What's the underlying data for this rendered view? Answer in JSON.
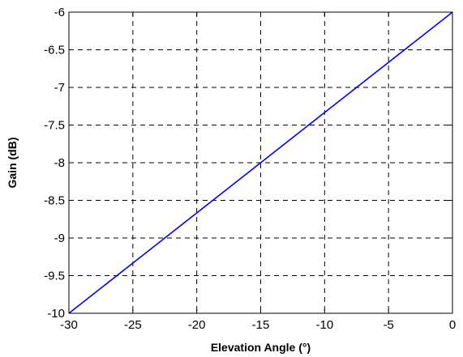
{
  "chart_data": {
    "type": "line",
    "xlabel": "Elevation Angle (°)",
    "ylabel": "Gain (dB)",
    "xlim": [
      -30,
      0
    ],
    "ylim": [
      -10,
      -6
    ],
    "xticks": [
      -30,
      -25,
      -20,
      -15,
      -10,
      -5,
      0
    ],
    "yticks": [
      -10,
      -9.5,
      -9,
      -8.5,
      -8,
      -7.5,
      -7,
      -6.5,
      -6
    ],
    "grid": true,
    "grid_style": "dashed",
    "series": [
      {
        "color": "#0000ff",
        "x": [
          -30,
          -25,
          -20,
          -15,
          -10,
          -5,
          0
        ],
        "y": [
          -10,
          -9.333,
          -8.667,
          -8.0,
          -7.333,
          -6.667,
          -6
        ]
      }
    ]
  }
}
